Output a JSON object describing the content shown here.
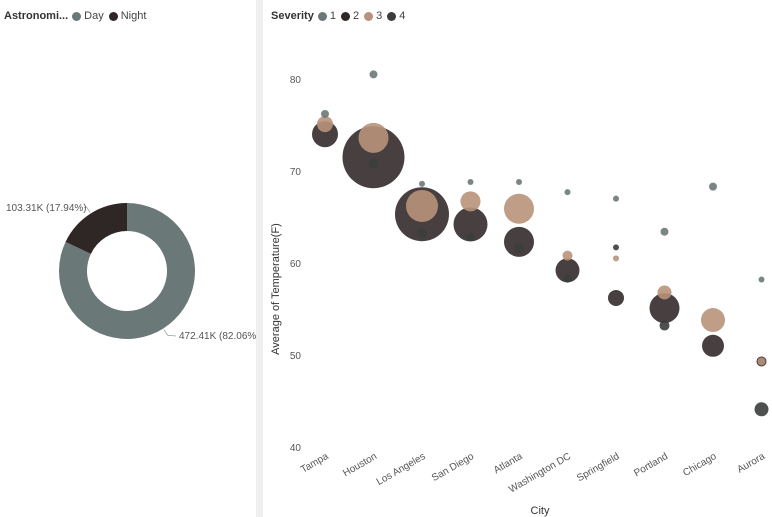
{
  "chart_data": [
    {
      "type": "pie",
      "variant": "donut",
      "legend": {
        "title": "Astronomi...",
        "position": "top-left"
      },
      "slices": [
        {
          "name": "Day",
          "value": 472.41,
          "label": "472.41K (82.06%)",
          "color": "#6b7878"
        },
        {
          "name": "Night",
          "value": 103.31,
          "label": "103.31K (17.94%)",
          "color": "#2f2626"
        }
      ]
    },
    {
      "type": "scatter",
      "variant": "bubble",
      "xlabel": "City",
      "ylabel": "Average of Temperature(F)",
      "ylim": [
        40,
        82
      ],
      "yticks": [
        40,
        50,
        60,
        70,
        80
      ],
      "grid": false,
      "legend": {
        "title": "Severity",
        "position": "top-left"
      },
      "categories": [
        "Tampa",
        "Houston",
        "Los Angeles",
        "San Diego",
        "Atlanta",
        "Washington DC",
        "Springfield",
        "Portland",
        "Chicago",
        "Aurora"
      ],
      "series": [
        {
          "name": "1",
          "color": "#6b7878",
          "points": [
            {
              "x": "Tampa",
              "y": 76.2,
              "r": 4
            },
            {
              "x": "Houston",
              "y": 80.5,
              "r": 4
            },
            {
              "x": "Los Angeles",
              "y": 68.6,
              "r": 3
            },
            {
              "x": "San Diego",
              "y": 68.8,
              "r": 3
            },
            {
              "x": "Atlanta",
              "y": 68.8,
              "r": 3
            },
            {
              "x": "Washington DC",
              "y": 67.7,
              "r": 3
            },
            {
              "x": "Springfield",
              "y": 67.0,
              "r": 3
            },
            {
              "x": "Portland",
              "y": 63.4,
              "r": 4
            },
            {
              "x": "Chicago",
              "y": 68.3,
              "r": 4
            },
            {
              "x": "Aurora",
              "y": 58.2,
              "r": 3
            }
          ]
        },
        {
          "name": "2",
          "color": "#2f2626",
          "points": [
            {
              "x": "Tampa",
              "y": 74.0,
              "r": 13
            },
            {
              "x": "Houston",
              "y": 71.5,
              "r": 31
            },
            {
              "x": "Los Angeles",
              "y": 65.3,
              "r": 27
            },
            {
              "x": "San Diego",
              "y": 64.2,
              "r": 17
            },
            {
              "x": "Atlanta",
              "y": 62.3,
              "r": 15
            },
            {
              "x": "Washington DC",
              "y": 59.2,
              "r": 12
            },
            {
              "x": "Springfield",
              "y": 56.2,
              "r": 8
            },
            {
              "x": "Portland",
              "y": 55.1,
              "r": 15
            },
            {
              "x": "Chicago",
              "y": 51.0,
              "r": 11
            },
            {
              "x": "Aurora",
              "y": 49.3,
              "r": 5
            }
          ]
        },
        {
          "name": "3",
          "color": "#b8927a",
          "points": [
            {
              "x": "Tampa",
              "y": 75.1,
              "r": 8
            },
            {
              "x": "Houston",
              "y": 73.6,
              "r": 15
            },
            {
              "x": "Los Angeles",
              "y": 66.2,
              "r": 16
            },
            {
              "x": "San Diego",
              "y": 66.7,
              "r": 10
            },
            {
              "x": "Atlanta",
              "y": 65.9,
              "r": 15
            },
            {
              "x": "Washington DC",
              "y": 60.8,
              "r": 5
            },
            {
              "x": "Springfield",
              "y": 60.5,
              "r": 3
            },
            {
              "x": "Portland",
              "y": 56.8,
              "r": 7
            },
            {
              "x": "Chicago",
              "y": 53.8,
              "r": 12
            },
            {
              "x": "Aurora",
              "y": 49.3,
              "r": 4
            }
          ]
        },
        {
          "name": "4",
          "color": "#3b3d3d",
          "points": [
            {
              "x": "Houston",
              "y": 70.8,
              "r": 5
            },
            {
              "x": "Los Angeles",
              "y": 63.2,
              "r": 5
            },
            {
              "x": "San Diego",
              "y": 62.8,
              "r": 4
            },
            {
              "x": "Atlanta",
              "y": 61.6,
              "r": 5
            },
            {
              "x": "Washington DC",
              "y": 58.3,
              "r": 4
            },
            {
              "x": "Springfield",
              "y": 61.7,
              "r": 3
            },
            {
              "x": "Portland",
              "y": 53.2,
              "r": 5
            },
            {
              "x": "Aurora",
              "y": 44.1,
              "r": 7
            }
          ]
        }
      ]
    }
  ]
}
